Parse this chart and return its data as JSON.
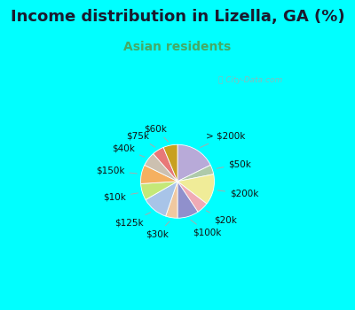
{
  "title": "Income distribution in Lizella, GA (%)",
  "subtitle": "Asian residents",
  "title_color": "#1a1a2e",
  "subtitle_color": "#44aa66",
  "bg_cyan": "#00ffff",
  "bg_chart": "#e8f5ee",
  "watermark": "ⓘ City-Data.com",
  "labels": [
    "> $200k",
    "$50k",
    "$200k",
    "$20k",
    "$100k",
    "$30k",
    "$125k",
    "$10k",
    "$150k",
    "$40k",
    "$75k",
    "$60k"
  ],
  "values": [
    17,
    4,
    13,
    5,
    9,
    5,
    11,
    7,
    8,
    6,
    5,
    6
  ],
  "colors": [
    "#b8aad8",
    "#aecaaa",
    "#f0ec98",
    "#f0aab5",
    "#9090cc",
    "#f0c8a0",
    "#a8c4e8",
    "#c4e878",
    "#f5b060",
    "#ccc0b0",
    "#e87878",
    "#c8a020"
  ],
  "label_fontsize": 7.5,
  "title_fontsize": 13,
  "subtitle_fontsize": 10
}
